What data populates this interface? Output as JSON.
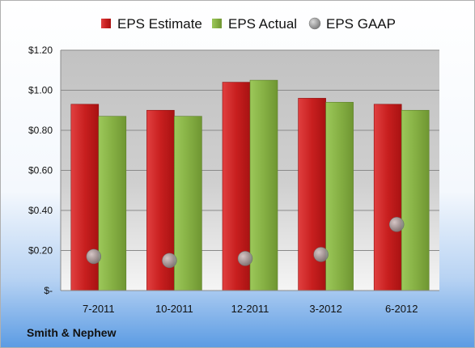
{
  "company": "Smith & Nephew",
  "legend": {
    "position": "top",
    "items": [
      {
        "label": "EPS Estimate",
        "color": "#d42a2a",
        "marker": "square"
      },
      {
        "label": "EPS Actual",
        "color": "#8cb84a",
        "marker": "square"
      },
      {
        "label": "EPS GAAP",
        "color": "#a8a8a8",
        "marker": "sphere"
      }
    ]
  },
  "colors": {
    "background_top": "#ffffff",
    "background_bottom": "#5b9be3",
    "plot_top": "#c4c4c4",
    "plot_bottom": "#f4f4f4",
    "estimate": "#d42a2a",
    "actual": "#8cb84a",
    "gaap": "#999999"
  },
  "chart_data": {
    "type": "bar",
    "title": "",
    "xlabel": "",
    "ylabel": "",
    "categories": [
      "7-2011",
      "10-2011",
      "12-2011",
      "3-2012",
      "6-2012"
    ],
    "series": [
      {
        "name": "EPS Estimate",
        "type": "bar",
        "values": [
          0.93,
          0.9,
          1.04,
          0.96,
          0.93
        ]
      },
      {
        "name": "EPS Actual",
        "type": "bar",
        "values": [
          0.87,
          0.87,
          1.05,
          0.94,
          0.9
        ]
      },
      {
        "name": "EPS GAAP",
        "type": "scatter",
        "values": [
          0.17,
          0.15,
          0.16,
          0.18,
          0.33
        ]
      }
    ],
    "ylim": [
      0,
      1.2
    ],
    "yticks": [
      0,
      0.2,
      0.4,
      0.6,
      0.8,
      1.0,
      1.2
    ],
    "yticklabels": [
      "$-",
      "$0.20",
      "$0.40",
      "$0.60",
      "$0.80",
      "$1.00",
      "$1.20"
    ],
    "grid": true
  }
}
